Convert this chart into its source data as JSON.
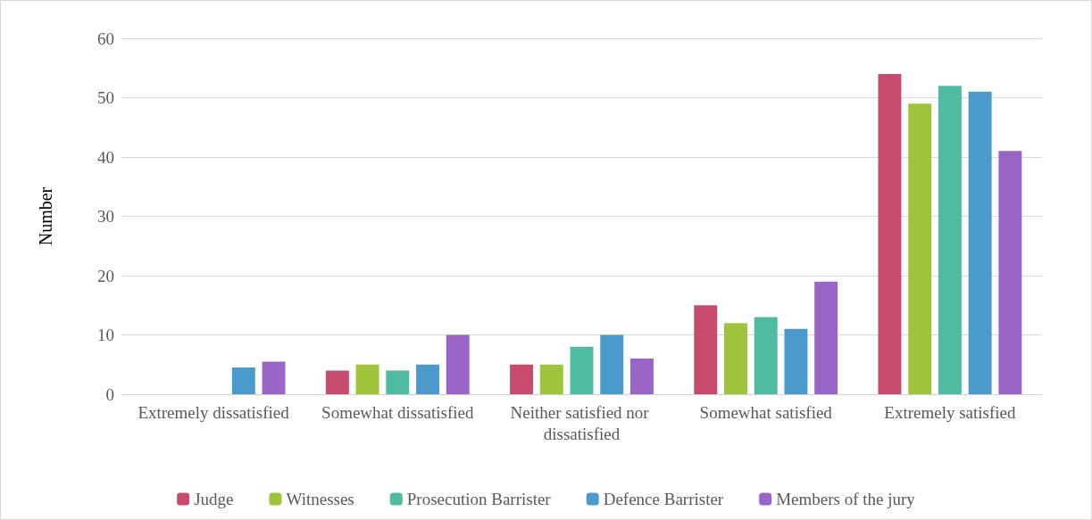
{
  "chart_data": {
    "type": "bar",
    "ylabel": "Number",
    "categories": [
      "Extremely dissatisfied",
      "Somewhat dissatisfied",
      "Neither satisfied nor dissatisfied",
      "Somewhat satisfied",
      "Extremely satisfied"
    ],
    "series": [
      {
        "name": "Judge",
        "color": "#c74b6c",
        "values": [
          0,
          4,
          5,
          15,
          54
        ]
      },
      {
        "name": "Witnesses",
        "color": "#9ec43c",
        "values": [
          0,
          5,
          5,
          12,
          49
        ]
      },
      {
        "name": "Prosecution Barrister",
        "color": "#4fbba0",
        "values": [
          0,
          4,
          8,
          13,
          52
        ]
      },
      {
        "name": "Defence Barrister",
        "color": "#4a9acb",
        "values": [
          4.5,
          5,
          10,
          11,
          51
        ]
      },
      {
        "name": "Members of the jury",
        "color": "#9966c8",
        "values": [
          5.5,
          10,
          6,
          19,
          41
        ]
      }
    ],
    "ylim": [
      0,
      60
    ],
    "yticks": [
      0,
      10,
      20,
      30,
      40,
      50,
      60
    ],
    "grid": "y",
    "legend": "bottom"
  }
}
